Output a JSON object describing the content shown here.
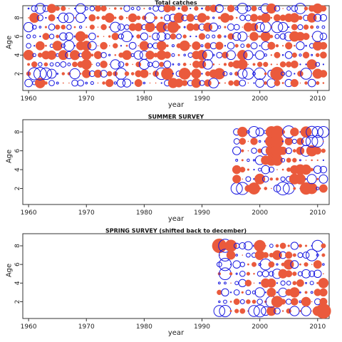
{
  "colors": {
    "positive": "#1818e0",
    "negative": "#ea5a3c",
    "axis": "#333333"
  },
  "chart_data": [
    {
      "type": "scatter",
      "title": "Total catches",
      "xlabel": "year",
      "ylabel": "Age",
      "xlim": [
        1959,
        2012
      ],
      "ylim": [
        0.2,
        9.3
      ],
      "xticks": [
        1960,
        1970,
        1980,
        1990,
        2000,
        2010
      ],
      "yticks": [
        2,
        4,
        6,
        8
      ],
      "years": [
        1960,
        2011
      ],
      "ages": [
        1,
        2,
        3,
        4,
        5,
        6,
        7,
        8,
        9
      ],
      "residual_scale": 1.8,
      "points": [
        {
          "age": 2,
          "year": 1961,
          "r": 1.3
        },
        {
          "age": 2,
          "year": 1962,
          "r": 1.4
        },
        {
          "age": 2,
          "year": 1963,
          "r": 1.2
        },
        {
          "age": 2,
          "year": 1976,
          "r": 1.1
        },
        {
          "age": 2,
          "year": 1984,
          "r": -1.3
        },
        {
          "age": 2,
          "year": 1987,
          "r": -1.2
        },
        {
          "age": 2,
          "year": 1993,
          "r": -1.1
        },
        {
          "age": 2,
          "year": 2003,
          "r": -1.6
        },
        {
          "age": 2,
          "year": 1983,
          "r": 1.2
        },
        {
          "age": 2,
          "year": 1998,
          "r": 1.1
        },
        {
          "age": 2,
          "year": 2000,
          "r": 1.2
        },
        {
          "age": 2,
          "year": 2008,
          "r": 1.1
        },
        {
          "age": 7,
          "year": 1983,
          "r": -1.0
        },
        {
          "age": 7,
          "year": 1985,
          "r": -1.2
        },
        {
          "age": 6,
          "year": 1977,
          "r": 1.0
        },
        {
          "age": 7,
          "year": 2001,
          "r": 1.0
        },
        {
          "age": 7,
          "year": 2003,
          "r": 1.1
        },
        {
          "age": 9,
          "year": 1997,
          "r": 1.0
        },
        {
          "age": 9,
          "year": 2007,
          "r": 1.0
        },
        {
          "age": 3,
          "year": 1997,
          "r": -0.9
        },
        {
          "age": 5,
          "year": 1983,
          "r": -0.8
        },
        {
          "age": 8,
          "year": 1994,
          "r": -0.8
        }
      ]
    },
    {
      "type": "scatter",
      "title": "SUMMER SURVEY",
      "xlabel": "year",
      "ylabel": "Age",
      "xlim": [
        1959,
        2012
      ],
      "ylim": [
        0.3,
        9.3
      ],
      "xticks": [
        1960,
        1970,
        1980,
        1990,
        2000,
        2010
      ],
      "yticks": [
        2,
        4,
        6,
        8
      ],
      "years": [
        1996,
        2011
      ],
      "ages": [
        2,
        3,
        4,
        5,
        6,
        7,
        8
      ],
      "residual_scale": 2.2,
      "points": [
        {
          "age": 2,
          "year": 1996,
          "r": 1.4
        },
        {
          "age": 2,
          "year": 1997,
          "r": 1.6
        },
        {
          "age": 2,
          "year": 1999,
          "r": -1.5
        },
        {
          "age": 2,
          "year": 2004,
          "r": 1.8
        },
        {
          "age": 2,
          "year": 2005,
          "r": 1.3
        },
        {
          "age": 2,
          "year": 2008,
          "r": -1.6
        },
        {
          "age": 2,
          "year": 2009,
          "r": -1.3
        },
        {
          "age": 3,
          "year": 2000,
          "r": -1.2
        },
        {
          "age": 3,
          "year": 2006,
          "r": -1.2
        },
        {
          "age": 3,
          "year": 2007,
          "r": -1.2
        },
        {
          "age": 4,
          "year": 2007,
          "r": -1.2
        },
        {
          "age": 4,
          "year": 2008,
          "r": -1.1
        },
        {
          "age": 5,
          "year": 2002,
          "r": -1.3
        },
        {
          "age": 5,
          "year": 2003,
          "r": -1.3
        },
        {
          "age": 6,
          "year": 2002,
          "r": -1.4
        },
        {
          "age": 6,
          "year": 2003,
          "r": -1.5
        },
        {
          "age": 6,
          "year": 2008,
          "r": 1.3
        },
        {
          "age": 6,
          "year": 2009,
          "r": -1.3
        },
        {
          "age": 7,
          "year": 2002,
          "r": -1.6
        },
        {
          "age": 7,
          "year": 2003,
          "r": -1.7
        },
        {
          "age": 7,
          "year": 2009,
          "r": 1.5
        },
        {
          "age": 7,
          "year": 2010,
          "r": 1.4
        },
        {
          "age": 8,
          "year": 1997,
          "r": -1.1
        },
        {
          "age": 8,
          "year": 1999,
          "r": 1.3
        },
        {
          "age": 8,
          "year": 2002,
          "r": -1.4
        },
        {
          "age": 8,
          "year": 2003,
          "r": -1.6
        },
        {
          "age": 8,
          "year": 2005,
          "r": 1.6
        },
        {
          "age": 8,
          "year": 2008,
          "r": -1.3
        },
        {
          "age": 8,
          "year": 2009,
          "r": 1.4
        },
        {
          "age": 8,
          "year": 2010,
          "r": 1.3
        },
        {
          "age": 8,
          "year": 2011,
          "r": 1.3
        }
      ]
    },
    {
      "type": "scatter",
      "title": "SPRING SURVEY (shifted back to december)",
      "xlabel": "year",
      "ylabel": "Age",
      "xlim": [
        1959,
        2012
      ],
      "ylim": [
        0.2,
        9.3
      ],
      "xticks": [
        1960,
        1970,
        1980,
        1990,
        2000,
        2010
      ],
      "yticks": [
        2,
        4,
        6,
        8
      ],
      "years": [
        1993,
        2011
      ],
      "ages": [
        1,
        2,
        3,
        4,
        5,
        6,
        7,
        8
      ],
      "residual_scale": 2.0,
      "points": [
        {
          "age": 1,
          "year": 1993,
          "r": 1.2
        },
        {
          "age": 1,
          "year": 1994,
          "r": 1.3
        },
        {
          "age": 1,
          "year": 1999,
          "r": 1.2
        },
        {
          "age": 1,
          "year": 2000,
          "r": 1.4
        },
        {
          "age": 1,
          "year": 2011,
          "r": -2.2
        },
        {
          "age": 2,
          "year": 2002,
          "r": 1.2
        },
        {
          "age": 2,
          "year": 2003,
          "r": -1.3
        },
        {
          "age": 5,
          "year": 1994,
          "r": 1.4
        },
        {
          "age": 6,
          "year": 1994,
          "r": 1.5
        },
        {
          "age": 6,
          "year": 2001,
          "r": 1.2
        },
        {
          "age": 7,
          "year": 1994,
          "r": 1.4
        },
        {
          "age": 7,
          "year": 2009,
          "r": 1.3
        },
        {
          "age": 8,
          "year": 1993,
          "r": -2.0
        },
        {
          "age": 8,
          "year": 1994,
          "r": 1.7
        },
        {
          "age": 8,
          "year": 1995,
          "r": -1.4
        },
        {
          "age": 8,
          "year": 2000,
          "r": -1.3
        },
        {
          "age": 8,
          "year": 2010,
          "r": 1.2
        },
        {
          "age": 4,
          "year": 2011,
          "r": -1.0
        },
        {
          "age": 3,
          "year": 2006,
          "r": -1.0
        },
        {
          "age": 6,
          "year": 2005,
          "r": -1.0
        }
      ]
    }
  ]
}
